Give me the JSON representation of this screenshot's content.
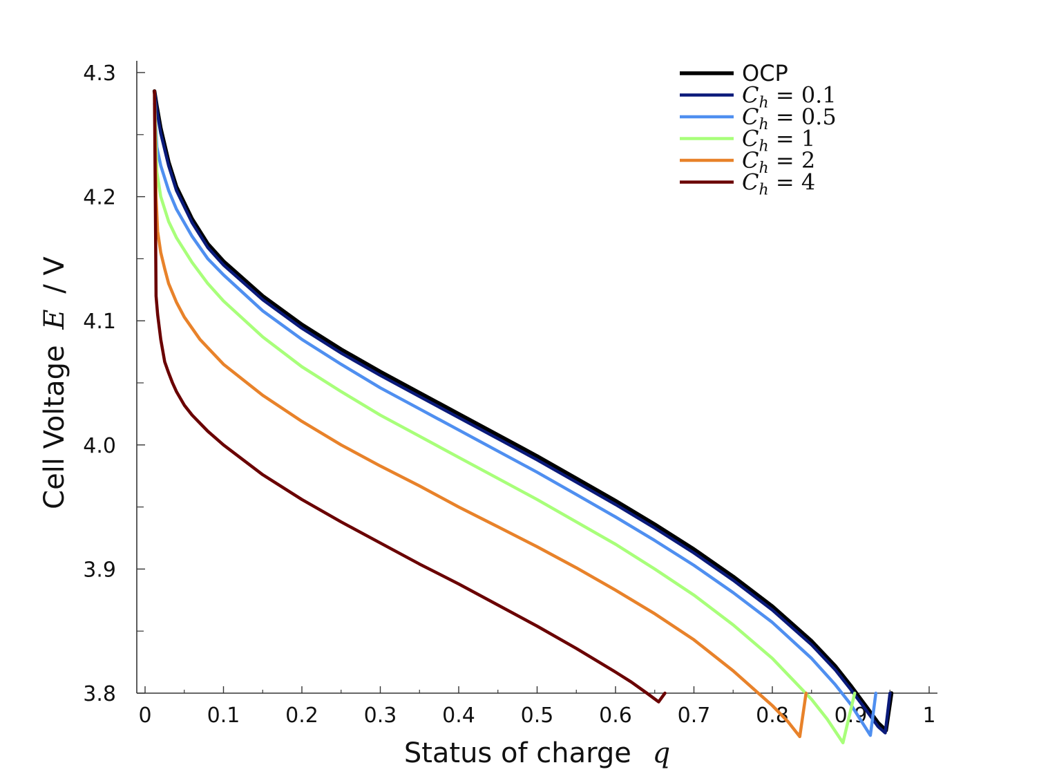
{
  "chart_data": {
    "type": "line",
    "title": "",
    "xlabel": "Status of charge",
    "xlabel_symbol": "q",
    "ylabel_prefix": "Cell Voltage",
    "ylabel_symbol": "E",
    "ylabel_unit": "/ V",
    "xlim": [
      0,
      1
    ],
    "ylim": [
      3.8,
      4.3
    ],
    "xticks": [
      "0",
      "0.1",
      "0.2",
      "0.3",
      "0.4",
      "0.5",
      "0.6",
      "0.7",
      "0.8",
      "0.9",
      "1"
    ],
    "yticks": [
      "3.8",
      "3.9",
      "4.0",
      "4.1",
      "4.2",
      "4.3"
    ],
    "grid": false,
    "legend_position": "top-right",
    "series": [
      {
        "name": "OCP",
        "color": "#000000",
        "x": [
          0.012,
          0.015,
          0.02,
          0.03,
          0.04,
          0.06,
          0.08,
          0.1,
          0.15,
          0.2,
          0.25,
          0.3,
          0.35,
          0.4,
          0.45,
          0.5,
          0.55,
          0.6,
          0.65,
          0.7,
          0.75,
          0.8,
          0.85,
          0.88,
          0.9,
          0.92,
          0.935,
          0.945,
          0.952
        ],
        "y": [
          4.285,
          4.273,
          4.255,
          4.228,
          4.208,
          4.182,
          4.162,
          4.148,
          4.12,
          4.097,
          4.077,
          4.059,
          4.042,
          4.025,
          4.008,
          3.991,
          3.973,
          3.955,
          3.936,
          3.916,
          3.894,
          3.87,
          3.842,
          3.822,
          3.806,
          3.789,
          3.776,
          3.77,
          3.8
        ]
      },
      {
        "name": "C_h = 0.1",
        "color": "#0a1a7a",
        "x": [
          0.012,
          0.015,
          0.02,
          0.03,
          0.04,
          0.06,
          0.08,
          0.1,
          0.15,
          0.2,
          0.25,
          0.3,
          0.35,
          0.4,
          0.45,
          0.5,
          0.55,
          0.6,
          0.65,
          0.7,
          0.75,
          0.8,
          0.85,
          0.88,
          0.9,
          0.92,
          0.935,
          0.944,
          0.95
        ],
        "y": [
          4.285,
          4.27,
          4.251,
          4.225,
          4.205,
          4.179,
          4.159,
          4.145,
          4.117,
          4.094,
          4.074,
          4.056,
          4.039,
          4.022,
          4.005,
          3.988,
          3.97,
          3.952,
          3.933,
          3.913,
          3.891,
          3.867,
          3.839,
          3.819,
          3.803,
          3.786,
          3.773,
          3.768,
          3.8
        ]
      },
      {
        "name": "C_h = 0.5",
        "color": "#4f8ff0",
        "x": [
          0.012,
          0.015,
          0.02,
          0.03,
          0.04,
          0.06,
          0.08,
          0.1,
          0.15,
          0.2,
          0.25,
          0.3,
          0.35,
          0.4,
          0.45,
          0.5,
          0.55,
          0.6,
          0.65,
          0.7,
          0.75,
          0.8,
          0.85,
          0.88,
          0.9,
          0.915,
          0.925,
          0.932
        ],
        "y": [
          4.275,
          4.24,
          4.225,
          4.205,
          4.19,
          4.168,
          4.15,
          4.137,
          4.108,
          4.085,
          4.065,
          4.046,
          4.029,
          4.012,
          3.995,
          3.978,
          3.96,
          3.942,
          3.923,
          3.903,
          3.881,
          3.857,
          3.828,
          3.807,
          3.791,
          3.776,
          3.766,
          3.8
        ]
      },
      {
        "name": "C_h = 1",
        "color": "#a8ff7a",
        "x": [
          0.012,
          0.015,
          0.02,
          0.03,
          0.04,
          0.06,
          0.08,
          0.1,
          0.15,
          0.2,
          0.25,
          0.3,
          0.35,
          0.4,
          0.45,
          0.5,
          0.55,
          0.6,
          0.65,
          0.7,
          0.75,
          0.8,
          0.85,
          0.87,
          0.89,
          0.905
        ],
        "y": [
          4.28,
          4.22,
          4.2,
          4.18,
          4.167,
          4.147,
          4.13,
          4.116,
          4.087,
          4.063,
          4.043,
          4.024,
          4.007,
          3.99,
          3.973,
          3.956,
          3.938,
          3.92,
          3.9,
          3.879,
          3.855,
          3.828,
          3.795,
          3.779,
          3.76,
          3.8
        ]
      },
      {
        "name": "C_h = 2",
        "color": "#e8822a",
        "x": [
          0.012,
          0.014,
          0.016,
          0.02,
          0.025,
          0.03,
          0.04,
          0.05,
          0.07,
          0.1,
          0.15,
          0.2,
          0.25,
          0.3,
          0.35,
          0.4,
          0.45,
          0.5,
          0.55,
          0.6,
          0.65,
          0.7,
          0.75,
          0.8,
          0.82,
          0.835,
          0.843
        ],
        "y": [
          4.285,
          4.2,
          4.172,
          4.155,
          4.142,
          4.13,
          4.115,
          4.103,
          4.085,
          4.065,
          4.04,
          4.019,
          4.0,
          3.983,
          3.967,
          3.95,
          3.934,
          3.918,
          3.901,
          3.883,
          3.864,
          3.843,
          3.818,
          3.79,
          3.777,
          3.765,
          3.8
        ]
      },
      {
        "name": "C_h = 4",
        "color": "#6a0000",
        "x": [
          0.012,
          0.013,
          0.014,
          0.016,
          0.02,
          0.025,
          0.03,
          0.035,
          0.04,
          0.05,
          0.06,
          0.08,
          0.1,
          0.15,
          0.2,
          0.25,
          0.3,
          0.35,
          0.4,
          0.45,
          0.5,
          0.55,
          0.6,
          0.62,
          0.64,
          0.655,
          0.663
        ],
        "y": [
          4.285,
          4.2,
          4.12,
          4.105,
          4.085,
          4.067,
          4.058,
          4.05,
          4.043,
          4.032,
          4.024,
          4.011,
          4.0,
          3.976,
          3.956,
          3.938,
          3.921,
          3.904,
          3.888,
          3.871,
          3.854,
          3.836,
          3.817,
          3.809,
          3.8,
          3.793,
          3.8
        ]
      }
    ]
  }
}
